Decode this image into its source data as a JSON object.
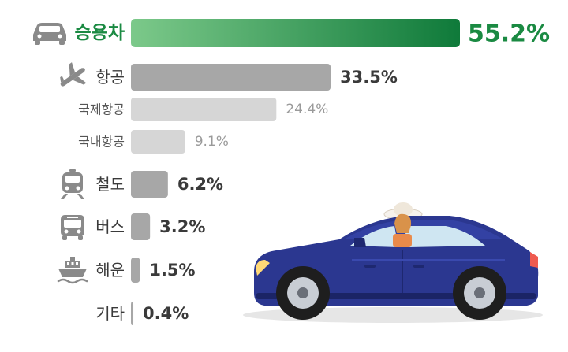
{
  "chart_data": {
    "type": "bar",
    "orientation": "horizontal",
    "unit": "%",
    "categories": [
      "승용차",
      "항공",
      "국제항공",
      "국내항공",
      "철도",
      "버스",
      "해운",
      "기타"
    ],
    "values": [
      55.2,
      33.5,
      24.4,
      9.1,
      6.2,
      3.2,
      1.5,
      0.4
    ],
    "labels": [
      "55.2%",
      "33.5%",
      "24.4%",
      "9.1%",
      "6.2%",
      "3.2%",
      "1.5%",
      "0.4%"
    ],
    "icons": [
      "car-icon",
      "airplane-icon",
      "",
      "",
      "train-icon",
      "bus-icon",
      "ship-icon",
      ""
    ],
    "sub_items": [
      false,
      false,
      true,
      true,
      false,
      false,
      false,
      false
    ],
    "colors": {
      "highlight_start": "#7cc98a",
      "highlight_end": "#0f7a3a",
      "highlight_text": "#1a8a42",
      "main_bar": "#a7a7a7",
      "sub_bar": "#d6d6d6",
      "main_text": "#3a3a3a",
      "sub_text": "#9a9a9a",
      "icon": "#8a8a8a"
    }
  }
}
